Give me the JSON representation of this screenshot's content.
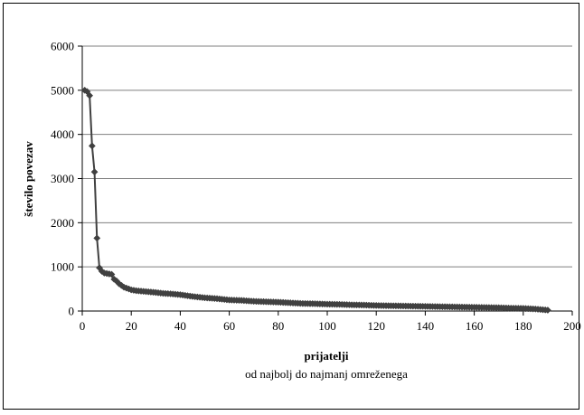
{
  "chart_data": {
    "type": "line",
    "title": "",
    "xlabel": "prijatelji",
    "xlabel_sub": "od najbolj do najmanj omreženega",
    "ylabel": "število povezav",
    "xlim": [
      0,
      200
    ],
    "ylim": [
      0,
      6000
    ],
    "x_ticks": [
      "0",
      "20",
      "40",
      "60",
      "80",
      "100",
      "120",
      "140",
      "160",
      "180",
      "200"
    ],
    "y_ticks": [
      "0",
      "1000",
      "2000",
      "3000",
      "4000",
      "5000",
      "6000"
    ],
    "grid": "horizontal",
    "legend": "none",
    "series": [
      {
        "color": "#404040",
        "marker": "diamond",
        "points": [
          [
            1,
            5000
          ],
          [
            2,
            4970
          ],
          [
            3,
            4880
          ],
          [
            4,
            3740
          ],
          [
            5,
            3150
          ],
          [
            6,
            1650
          ],
          [
            7,
            980
          ],
          [
            8,
            900
          ],
          [
            9,
            860
          ],
          [
            10,
            850
          ],
          [
            11,
            840
          ],
          [
            12,
            830
          ],
          [
            13,
            720
          ],
          [
            14,
            680
          ],
          [
            15,
            620
          ],
          [
            16,
            580
          ],
          [
            17,
            540
          ],
          [
            18,
            520
          ],
          [
            19,
            500
          ],
          [
            20,
            480
          ],
          [
            22,
            460
          ],
          [
            24,
            450
          ],
          [
            26,
            440
          ],
          [
            28,
            430
          ],
          [
            30,
            420
          ],
          [
            33,
            400
          ],
          [
            36,
            390
          ],
          [
            40,
            370
          ],
          [
            45,
            330
          ],
          [
            50,
            300
          ],
          [
            55,
            280
          ],
          [
            60,
            250
          ],
          [
            65,
            240
          ],
          [
            70,
            220
          ],
          [
            75,
            210
          ],
          [
            80,
            200
          ],
          [
            85,
            185
          ],
          [
            90,
            170
          ],
          [
            95,
            165
          ],
          [
            100,
            155
          ],
          [
            105,
            150
          ],
          [
            110,
            140
          ],
          [
            115,
            135
          ],
          [
            120,
            125
          ],
          [
            125,
            120
          ],
          [
            130,
            115
          ],
          [
            135,
            110
          ],
          [
            140,
            105
          ],
          [
            145,
            100
          ],
          [
            150,
            95
          ],
          [
            155,
            90
          ],
          [
            160,
            85
          ],
          [
            165,
            80
          ],
          [
            170,
            75
          ],
          [
            175,
            65
          ],
          [
            180,
            60
          ],
          [
            185,
            45
          ],
          [
            190,
            20
          ]
        ]
      }
    ]
  }
}
